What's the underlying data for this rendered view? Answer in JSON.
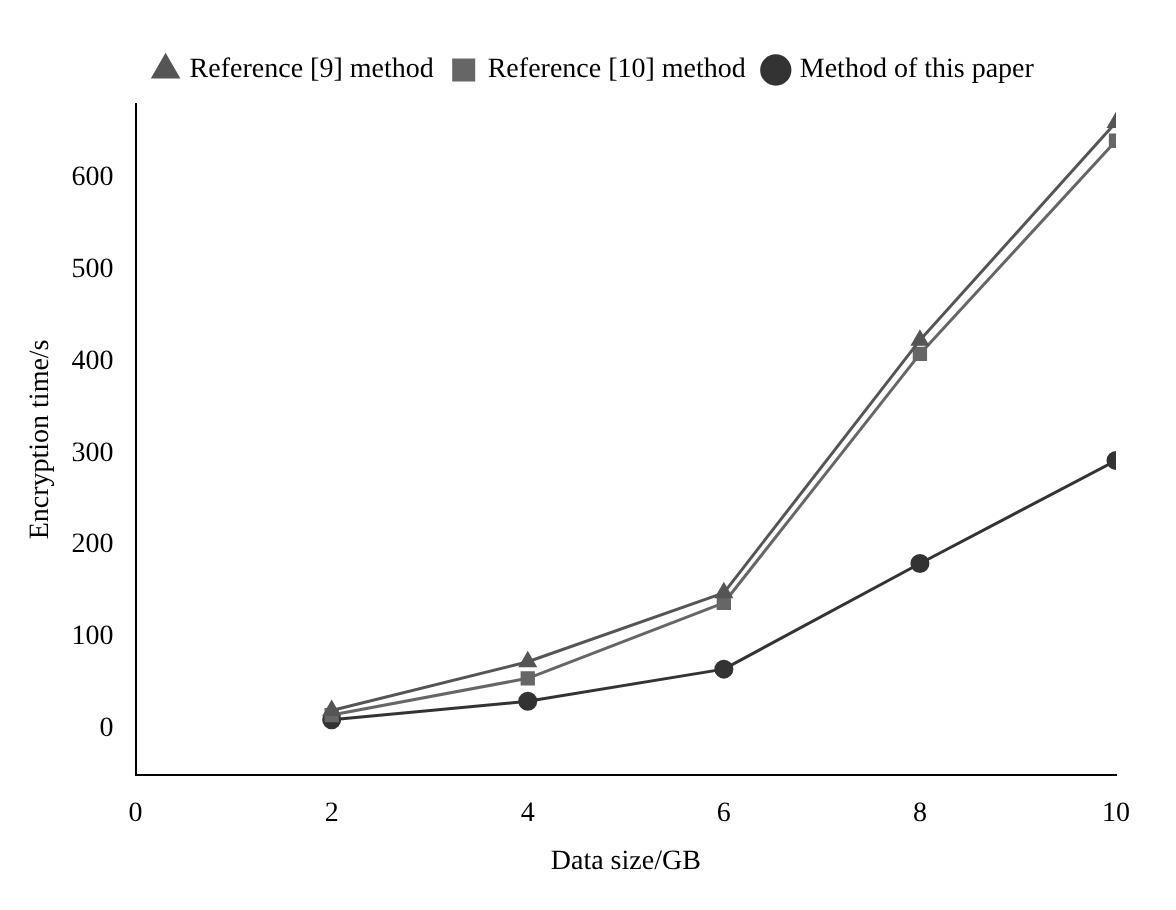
{
  "chart_data": {
    "type": "line",
    "xlabel": "Data size/GB",
    "ylabel": "Encryption time/s",
    "x": [
      2,
      4,
      6,
      8,
      10
    ],
    "series": [
      {
        "name": "Reference [9] method",
        "color": "#555555",
        "marker": "triangle",
        "values": [
          20,
          73,
          148,
          423,
          660
        ]
      },
      {
        "name": "Reference [10] method",
        "color": "#666666",
        "marker": "square",
        "values": [
          15,
          55,
          137,
          408,
          640
        ]
      },
      {
        "name": "Method of this paper",
        "color": "#333333",
        "marker": "circle",
        "values": [
          10,
          30,
          65,
          180,
          292
        ]
      }
    ],
    "xlim": [
      0,
      10
    ],
    "xticks": [
      0,
      2,
      4,
      6,
      8,
      10
    ],
    "ylim": [
      -50,
      680
    ],
    "yticks": [
      0,
      100,
      200,
      300,
      400,
      500,
      600
    ],
    "grid": false,
    "legend": "top left",
    "line_style": "solid"
  }
}
